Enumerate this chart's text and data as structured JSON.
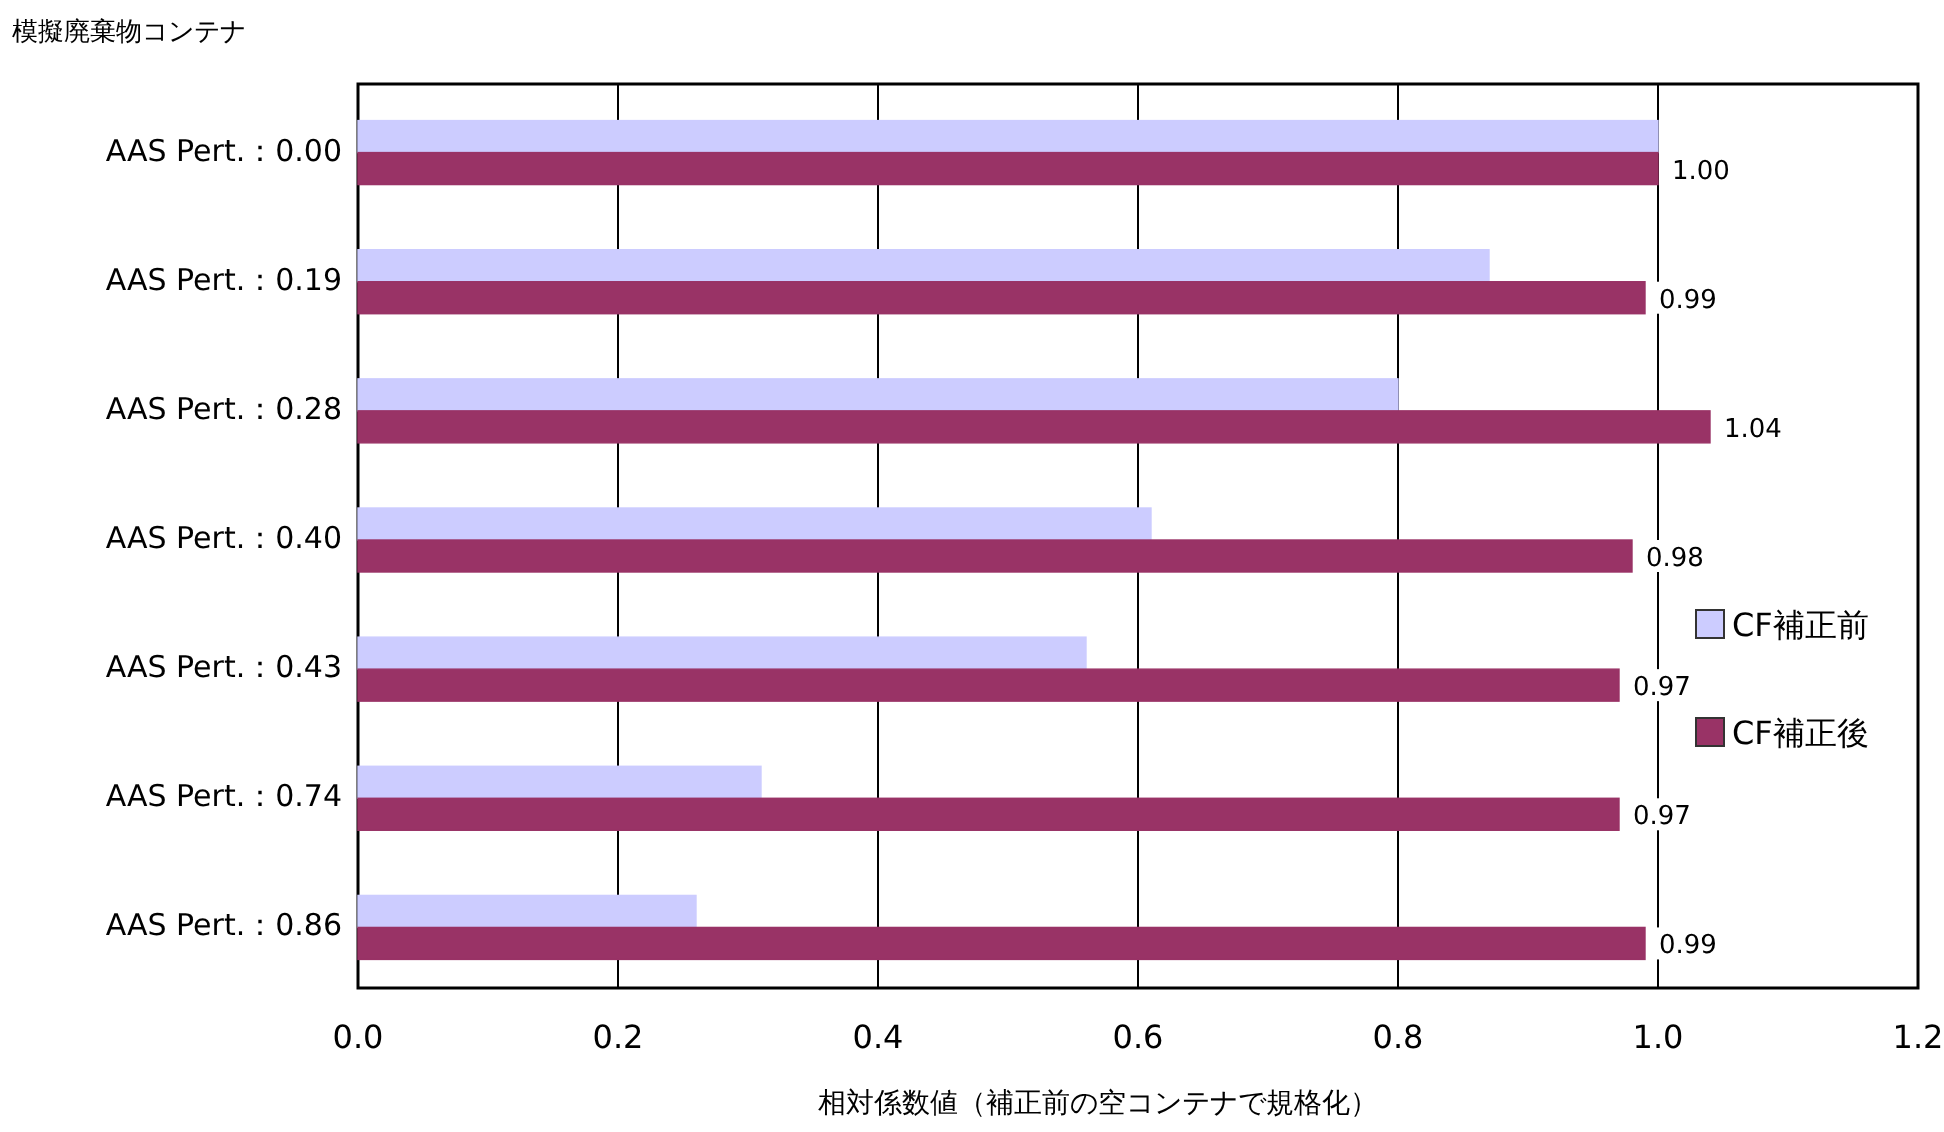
{
  "chart_data": {
    "type": "bar",
    "orientation": "horizontal",
    "ylabel": "模擬廃棄物コンテナ",
    "xlabel": "相対係数値（補正前の空コンテナで規格化）",
    "categories": [
      "AAS Pert.：0.00",
      "AAS Pert.：0.19",
      "AAS Pert.：0.28",
      "AAS Pert.：0.40",
      "AAS Pert.：0.43",
      "AAS Pert.：0.74",
      "AAS Pert.：0.86"
    ],
    "series": [
      {
        "name": "CF補正前",
        "color": "#ccccff",
        "values": [
          1.0,
          0.87,
          0.8,
          0.61,
          0.56,
          0.31,
          0.26
        ]
      },
      {
        "name": "CF補正後",
        "color": "#993366",
        "values": [
          1.0,
          0.99,
          1.04,
          0.98,
          0.97,
          0.97,
          0.99
        ],
        "value_labels": [
          "1.00",
          "0.99",
          "1.04",
          "0.98",
          "0.97",
          "0.97",
          "0.99"
        ]
      }
    ],
    "xlim": [
      0,
      1.2
    ],
    "xticks": [
      {
        "value": 0,
        "label": "0.0"
      },
      {
        "value": 0.2,
        "label": "0.2"
      },
      {
        "value": 0.4,
        "label": "0.4"
      },
      {
        "value": 0.6,
        "label": "0.6"
      },
      {
        "value": 0.8,
        "label": "0.8"
      },
      {
        "value": 1.0,
        "label": "1.0"
      },
      {
        "value": 1.2,
        "label": "1.2"
      }
    ],
    "grid": "x",
    "legend": "right"
  }
}
